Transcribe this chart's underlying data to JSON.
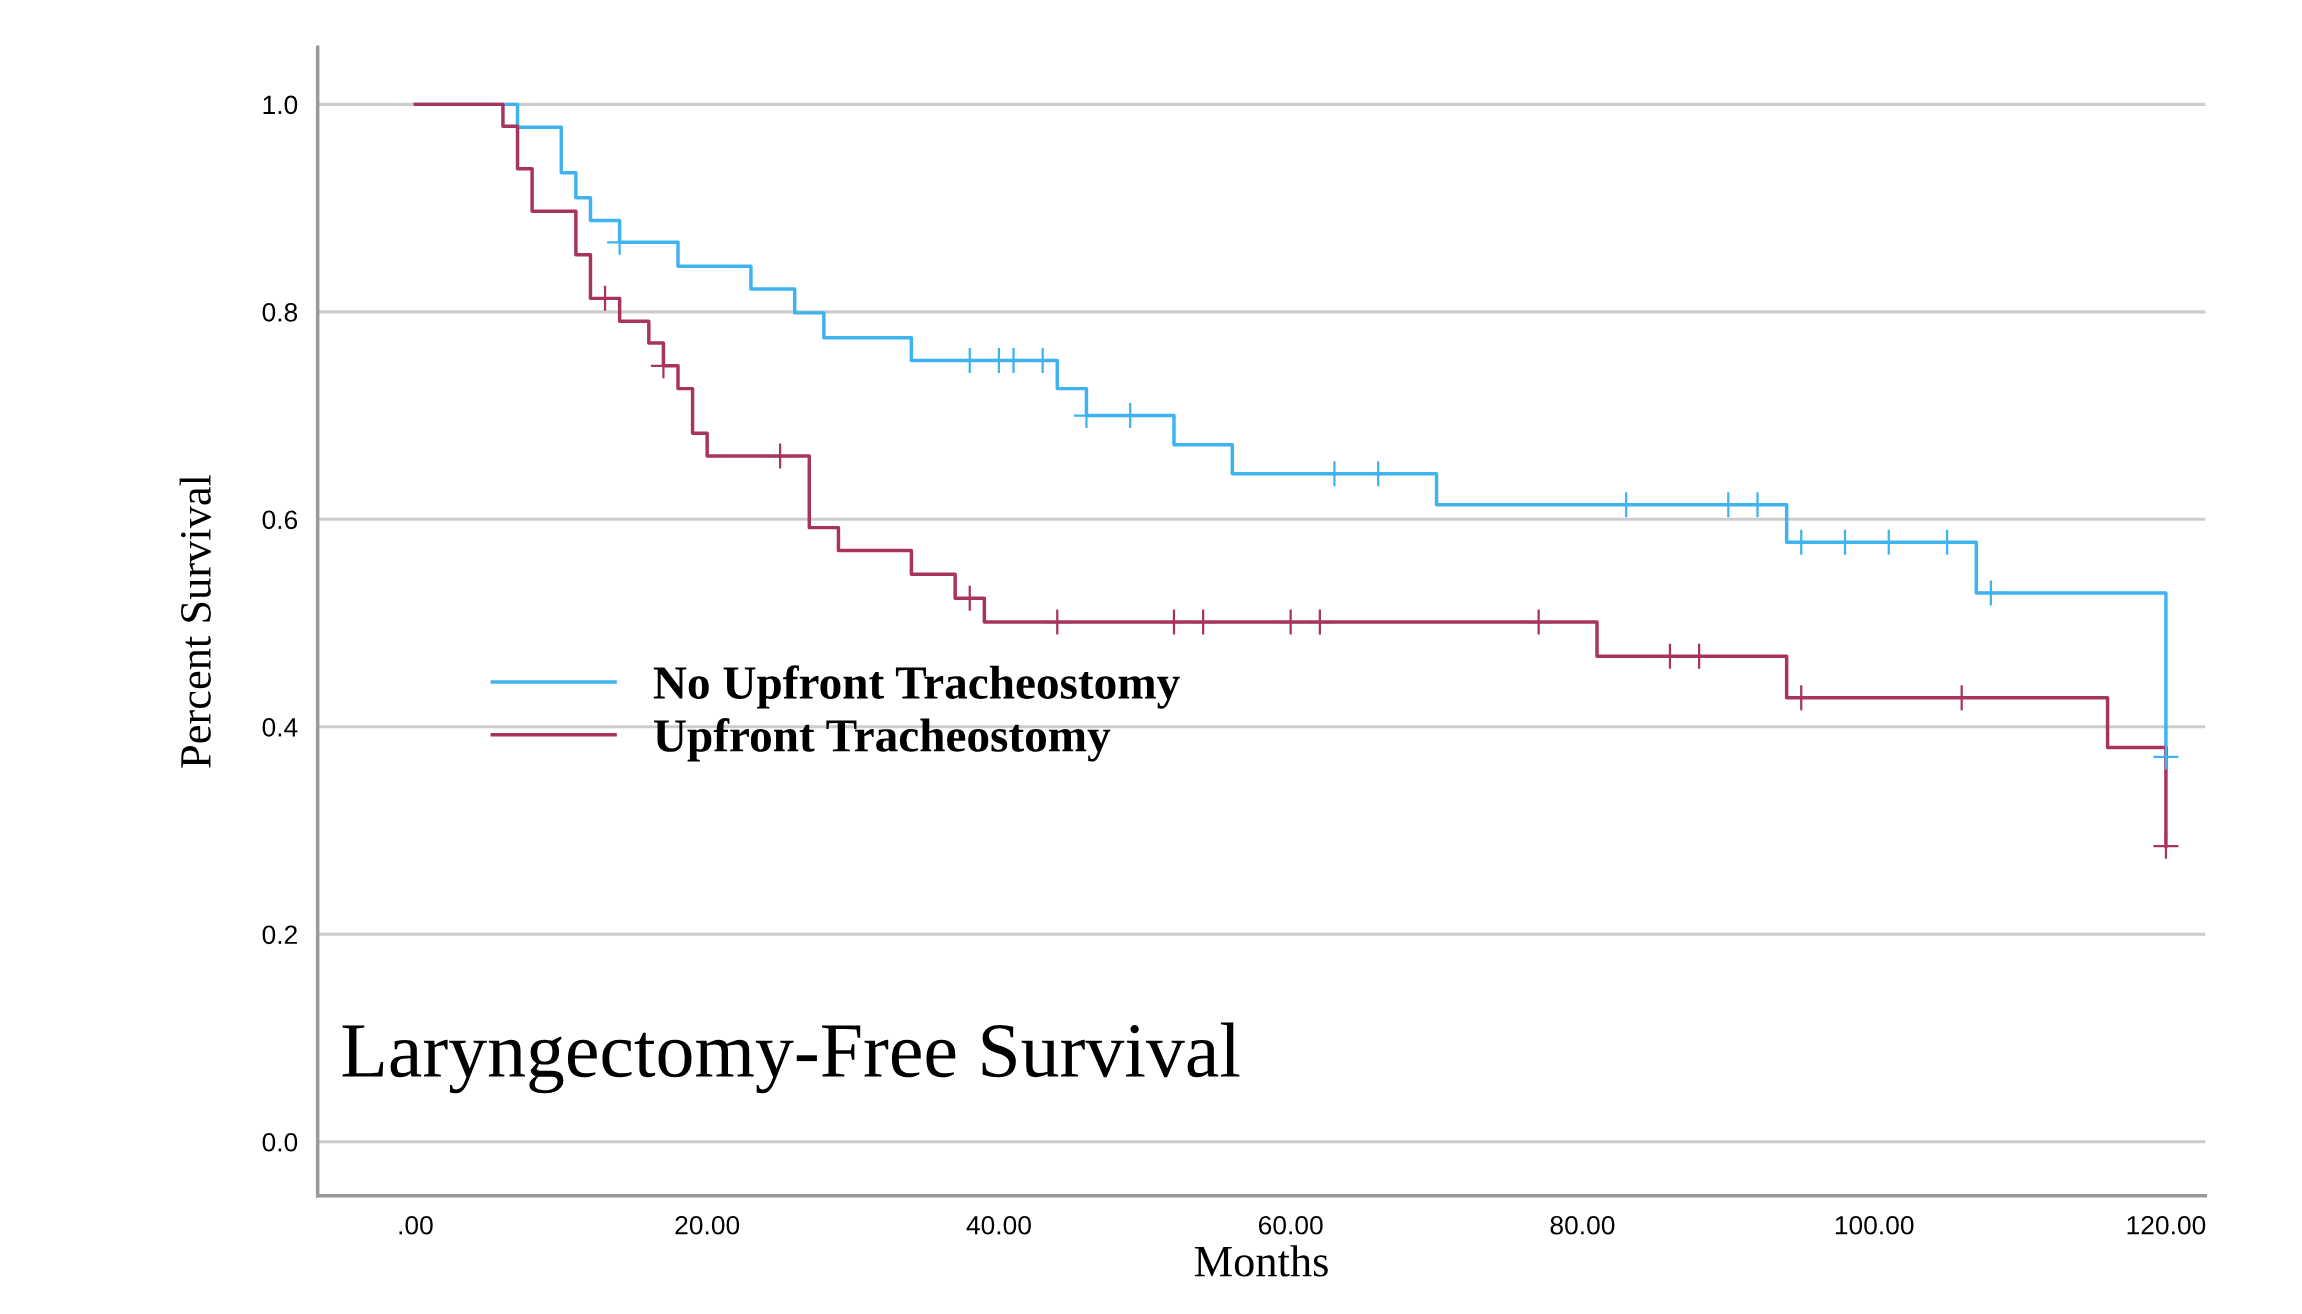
{
  "chart_data": {
    "type": "step",
    "title": "Laryngectomy-Free Survival",
    "xlabel": "Months",
    "ylabel": "Percent Survival",
    "series": [
      {
        "name": "No Upfront Tracheostomy",
        "color": "#3fb3f0",
        "x": [
          0,
          7,
          10,
          11,
          12,
          14,
          18,
          23,
          26,
          28,
          34,
          44,
          46,
          52,
          56,
          70,
          94,
          107,
          120
        ],
        "values": [
          1,
          0.978,
          0.934,
          0.91,
          0.888,
          0.867,
          0.844,
          0.822,
          0.799,
          0.775,
          0.753,
          0.726,
          0.7,
          0.672,
          0.644,
          0.614,
          0.578,
          0.529,
          0.371
        ]
      },
      {
        "name": "Upfront Tracheostomy",
        "color": "#a8345e",
        "x": [
          0,
          6,
          7,
          8,
          11,
          12,
          14,
          16,
          17,
          18,
          19,
          20,
          27,
          29,
          34,
          37,
          39,
          81,
          94,
          116,
          120
        ],
        "values": [
          1,
          0.979,
          0.938,
          0.897,
          0.855,
          0.813,
          0.791,
          0.77,
          0.748,
          0.726,
          0.683,
          0.661,
          0.592,
          0.57,
          0.547,
          0.524,
          0.501,
          0.468,
          0.428,
          0.38,
          0.285
        ]
      },
      {
        "type": "scatter",
        "marker": "cross",
        "color": "#3fb3f0",
        "x": [
          14,
          38,
          40,
          41,
          43,
          46,
          49,
          63,
          66,
          83,
          90,
          92,
          95,
          98,
          101,
          105,
          108,
          120
        ],
        "values": [
          0.867,
          0.753,
          0.753,
          0.753,
          0.753,
          0.7,
          0.7,
          0.644,
          0.644,
          0.614,
          0.614,
          0.614,
          0.578,
          0.578,
          0.578,
          0.578,
          0.529,
          0.371
        ]
      },
      {
        "type": "scatter",
        "marker": "cross",
        "color": "#a8345e",
        "x": [
          13,
          17,
          25,
          38,
          44,
          52,
          54,
          60,
          62,
          77,
          86,
          88,
          95,
          106,
          120
        ],
        "values": [
          0.813,
          0.748,
          0.661,
          0.524,
          0.501,
          0.501,
          0.501,
          0.501,
          0.501,
          0.501,
          0.468,
          0.468,
          0.428,
          0.428,
          0.285
        ]
      }
    ],
    "xlim": [
      -6.7,
      122.7
    ],
    "ylim": [
      -0.052,
      1.055
    ],
    "xticks": [
      {
        "value": 0,
        "label": ".00"
      },
      {
        "value": 20,
        "label": "20.00"
      },
      {
        "value": 40,
        "label": "40.00"
      },
      {
        "value": 60,
        "label": "60.00"
      },
      {
        "value": 80,
        "label": "80.00"
      },
      {
        "value": 100,
        "label": "100.00"
      },
      {
        "value": 120,
        "label": "120.00"
      }
    ],
    "yticks": [
      {
        "value": 0,
        "label": "0.0"
      },
      {
        "value": 0.2,
        "label": "0.2"
      },
      {
        "value": 0.4,
        "label": "0.4"
      },
      {
        "value": 0.6,
        "label": "0.6"
      },
      {
        "value": 0.8,
        "label": "0.8"
      },
      {
        "value": 1,
        "label": "1.0"
      }
    ],
    "grid": "y",
    "legend": "center left"
  }
}
